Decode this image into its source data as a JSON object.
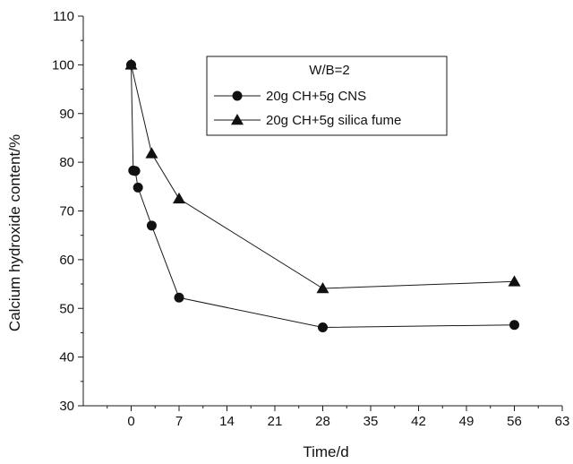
{
  "chart_data": {
    "type": "line",
    "title": "",
    "xlabel": "Time/d",
    "ylabel": "Calcium hydroxide content/%",
    "xlim": [
      -7,
      63
    ],
    "ylim": [
      30,
      110
    ],
    "xticks": [
      0,
      7,
      14,
      21,
      28,
      35,
      42,
      49,
      56,
      63
    ],
    "yticks": [
      30,
      40,
      50,
      60,
      70,
      80,
      90,
      100,
      110
    ],
    "grid": false,
    "legend": {
      "title": "W/B=2",
      "position": "top-right"
    },
    "series": [
      {
        "name": "20g CH+5g CNS",
        "marker": "circle",
        "x": [
          0,
          0.3,
          0.6,
          1,
          3,
          7,
          28,
          56
        ],
        "y": [
          100,
          78.3,
          78.2,
          74.8,
          67,
          52.2,
          46.1,
          46.6
        ]
      },
      {
        "name": "20g CH+5g silica fume",
        "marker": "triangle",
        "x": [
          0,
          3,
          7,
          28,
          56
        ],
        "y": [
          100,
          81.8,
          72.5,
          54.1,
          55.5
        ]
      }
    ]
  },
  "colors": {
    "line": "#1a1a1a",
    "marker": "#111111",
    "background": "#ffffff"
  }
}
